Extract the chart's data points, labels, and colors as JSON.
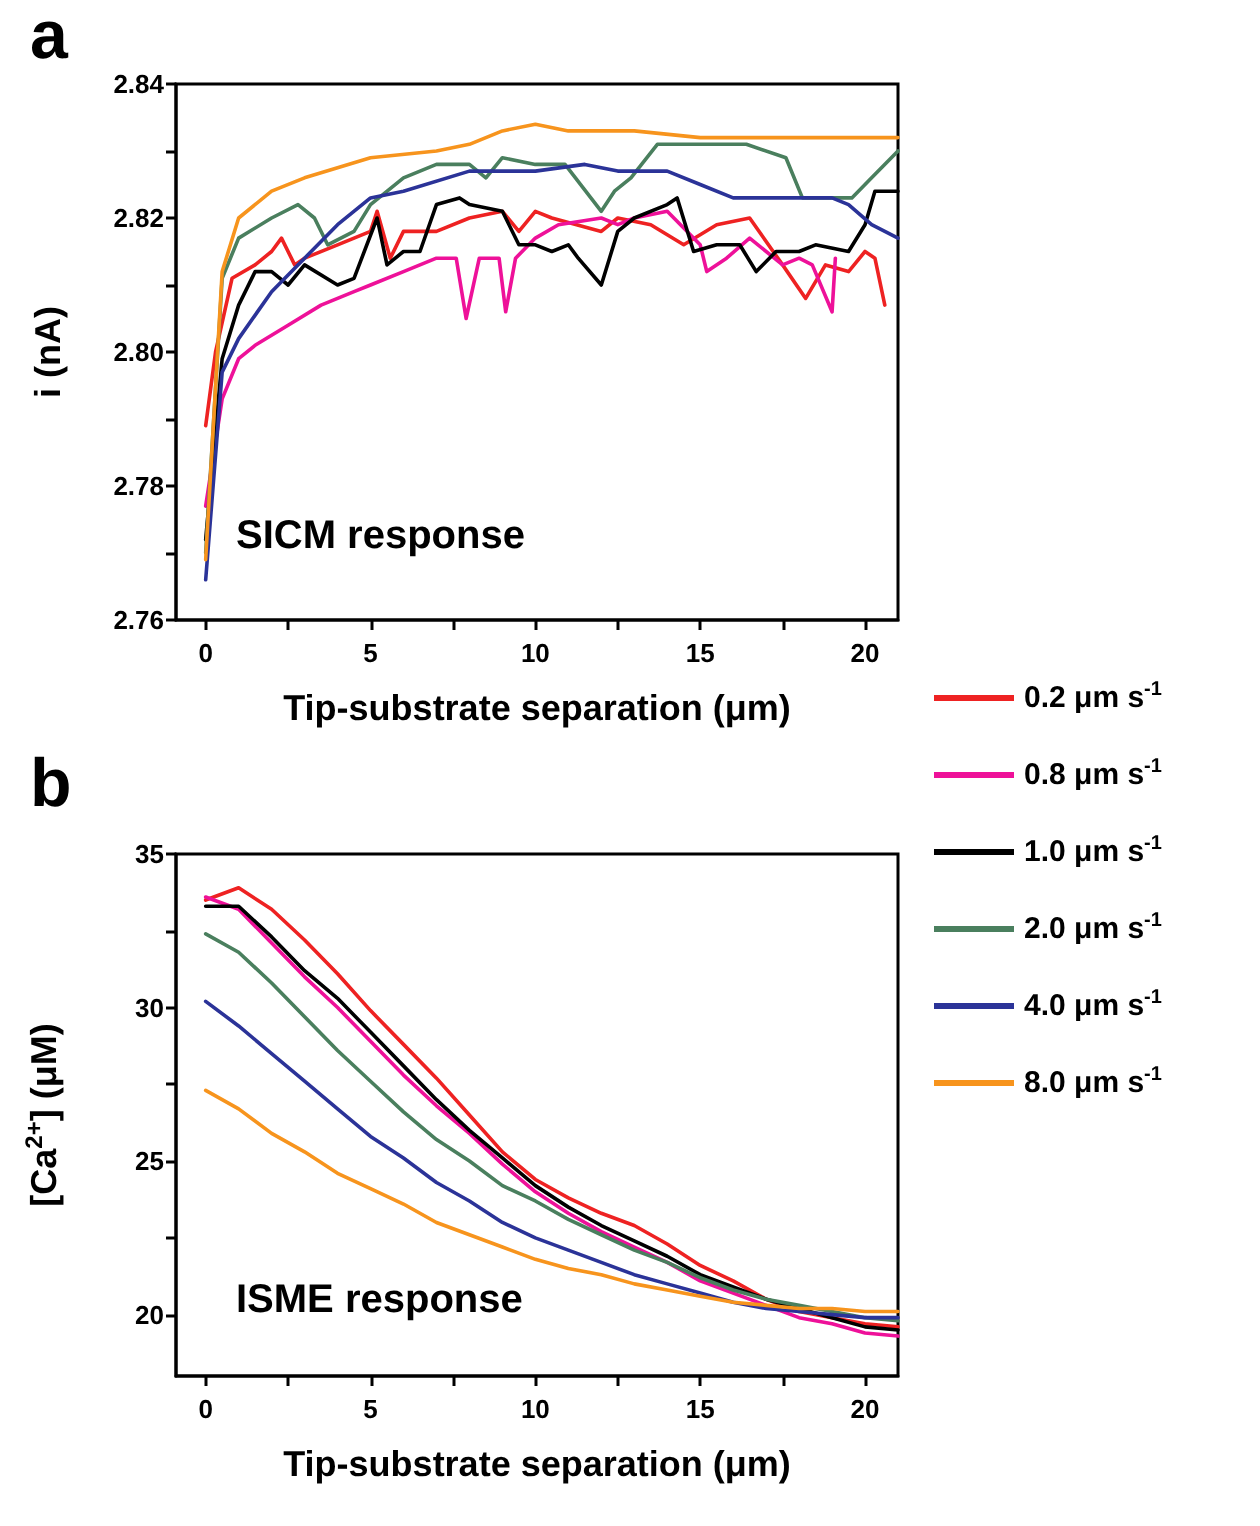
{
  "chart_data": [
    {
      "type": "line",
      "title": "a",
      "xlabel": "Tip-substrate separation (μm)",
      "ylabel": "i (nA)",
      "annotations": [
        "SICM response"
      ],
      "xlim": [
        -0.9,
        21
      ],
      "ylim": [
        2.76,
        2.84
      ],
      "xticks": [
        0,
        {
          "value": 2.5,
          "label": null
        },
        5,
        {
          "value": 7.5,
          "label": null
        },
        10,
        {
          "value": 12.5,
          "label": null
        },
        15,
        {
          "value": 17.5,
          "label": null
        },
        20
      ],
      "yticks": [
        2.76,
        {
          "value": 2.77,
          "label": null
        },
        2.78,
        {
          "value": 2.79,
          "label": null
        },
        {
          "value": 2.8,
          "label": "2.80"
        },
        {
          "value": 2.81,
          "label": null
        },
        2.82,
        {
          "value": 2.83,
          "label": null
        },
        2.84
      ],
      "grid": false,
      "legend": "right",
      "marker": "none",
      "line_style": "solid",
      "series": [
        {
          "name": "0.2 μm s$^{-1}$",
          "color": "#ee2222",
          "x": [
            0,
            0.3,
            0.8,
            1.5,
            2,
            2.3,
            2.7,
            3,
            4,
            5,
            5.2,
            5.6,
            6,
            7,
            8,
            9,
            9.5,
            10,
            10.5,
            12,
            12.5,
            13.5,
            14.5,
            15.5,
            16.5,
            17.5,
            18.2,
            18.8,
            19.5,
            20,
            20.3,
            20.6
          ],
          "values": [
            2.789,
            2.8,
            2.811,
            2.813,
            2.815,
            2.817,
            2.813,
            2.814,
            2.816,
            2.818,
            2.821,
            2.814,
            2.818,
            2.818,
            2.82,
            2.821,
            2.818,
            2.821,
            2.82,
            2.818,
            2.82,
            2.819,
            2.816,
            2.819,
            2.82,
            2.813,
            2.808,
            2.813,
            2.812,
            2.815,
            2.814,
            2.807
          ]
        },
        {
          "name": "0.8 μm s$^{-1}$",
          "color": "#ee1199",
          "x": [
            0,
            0.5,
            1,
            1.5,
            2.5,
            3.5,
            4.5,
            5,
            6,
            7,
            7.6,
            7.9,
            8.3,
            8.9,
            9.1,
            9.4,
            10,
            10.7,
            12,
            12.5,
            13,
            14,
            15,
            15.2,
            15.8,
            16.5,
            17.5,
            18,
            18.4,
            19,
            19.1
          ],
          "values": [
            2.777,
            2.793,
            2.799,
            2.801,
            2.804,
            2.807,
            2.809,
            2.81,
            2.812,
            2.814,
            2.814,
            2.805,
            2.814,
            2.814,
            2.806,
            2.814,
            2.817,
            2.819,
            2.82,
            2.819,
            2.82,
            2.821,
            2.816,
            2.812,
            2.814,
            2.817,
            2.813,
            2.814,
            2.813,
            2.806,
            2.814
          ]
        },
        {
          "name": "1.0 μm s$^{-1}$",
          "color": "#000000",
          "x": [
            0,
            0.5,
            1,
            1.5,
            2,
            2.5,
            3,
            4,
            4.5,
            5.2,
            5.5,
            6,
            6.5,
            7,
            7.7,
            8,
            9,
            9.5,
            10,
            10.5,
            11,
            11.3,
            12,
            12.5,
            13,
            14,
            14.3,
            14.8,
            15.5,
            16.2,
            16.7,
            17.3,
            18,
            18.5,
            19.5,
            20,
            20.3,
            21
          ],
          "values": [
            2.772,
            2.799,
            2.807,
            2.812,
            2.812,
            2.81,
            2.813,
            2.81,
            2.811,
            2.82,
            2.813,
            2.815,
            2.815,
            2.822,
            2.823,
            2.822,
            2.821,
            2.816,
            2.816,
            2.815,
            2.816,
            2.814,
            2.81,
            2.818,
            2.82,
            2.822,
            2.823,
            2.815,
            2.816,
            2.816,
            2.812,
            2.815,
            2.815,
            2.816,
            2.815,
            2.819,
            2.824,
            2.824
          ]
        },
        {
          "name": "2.0 μm s$^{-1}$",
          "color": "#4a7f5e",
          "x": [
            0,
            0.5,
            1,
            2,
            2.8,
            3.3,
            3.7,
            4.5,
            5,
            6,
            7,
            8,
            8.5,
            9,
            10,
            10.9,
            12,
            12.4,
            12.9,
            13.7,
            14.9,
            16.4,
            17.6,
            18.1,
            19,
            19.6,
            20.2,
            21
          ],
          "values": [
            2.77,
            2.811,
            2.817,
            2.82,
            2.822,
            2.82,
            2.816,
            2.818,
            2.822,
            2.826,
            2.828,
            2.828,
            2.826,
            2.829,
            2.828,
            2.828,
            2.821,
            2.824,
            2.826,
            2.831,
            2.831,
            2.831,
            2.829,
            2.823,
            2.823,
            2.823,
            2.826,
            2.83
          ]
        },
        {
          "name": "4.0 μm s$^{-1}$",
          "color": "#2b3398",
          "x": [
            0,
            0.5,
            1,
            2,
            3,
            4,
            5,
            6,
            8,
            10,
            11.5,
            12.5,
            14,
            15,
            16,
            18,
            19,
            19.5,
            20.2,
            21
          ],
          "values": [
            2.766,
            2.797,
            2.802,
            2.809,
            2.814,
            2.819,
            2.823,
            2.824,
            2.827,
            2.827,
            2.828,
            2.827,
            2.827,
            2.825,
            2.823,
            2.823,
            2.823,
            2.822,
            2.819,
            2.817
          ]
        },
        {
          "name": "8.0 μm s$^{-1}$",
          "color": "#f7941d",
          "x": [
            0,
            0.5,
            1,
            2,
            3,
            5,
            7,
            8,
            9,
            10,
            11,
            12,
            13,
            15,
            17,
            19,
            21
          ],
          "values": [
            2.769,
            2.812,
            2.82,
            2.824,
            2.826,
            2.829,
            2.83,
            2.831,
            2.833,
            2.834,
            2.833,
            2.833,
            2.833,
            2.832,
            2.832,
            2.832,
            2.832
          ]
        }
      ]
    },
    {
      "type": "line",
      "title": "b",
      "xlabel": "Tip-substrate separation (μm)",
      "ylabel": "[Ca$^{2+}$] (μM)",
      "annotations": [
        "ISME response"
      ],
      "xlim": [
        -0.9,
        21
      ],
      "ylim": [
        18,
        35
      ],
      "xticks": [
        0,
        {
          "value": 2.5,
          "label": null
        },
        5,
        {
          "value": 7.5,
          "label": null
        },
        10,
        {
          "value": 12.5,
          "label": null
        },
        15,
        {
          "value": 17.5,
          "label": null
        },
        20
      ],
      "yticks": [
        20,
        {
          "value": 22.5,
          "label": null
        },
        25,
        {
          "value": 27.5,
          "label": null
        },
        30,
        {
          "value": 32.5,
          "label": null
        },
        35
      ],
      "grid": false,
      "marker": "none",
      "line_style": "solid",
      "x": [
        0,
        1,
        2,
        3,
        4,
        5,
        6,
        7,
        8,
        9,
        10,
        11,
        12,
        13,
        14,
        15,
        16,
        17,
        18,
        19,
        20,
        21
      ],
      "series": [
        {
          "color": "#ee2222",
          "values": [
            33.5,
            33.9,
            33.2,
            32.2,
            31.1,
            29.9,
            28.8,
            27.7,
            26.5,
            25.3,
            24.4,
            23.8,
            23.3,
            22.9,
            22.3,
            21.6,
            21.1,
            20.5,
            20.1,
            19.9,
            19.7,
            19.6
          ]
        },
        {
          "color": "#ee1199",
          "values": [
            33.6,
            33.2,
            32.1,
            31.0,
            30.0,
            28.9,
            27.8,
            26.8,
            25.9,
            24.9,
            24.0,
            23.3,
            22.7,
            22.2,
            21.7,
            21.1,
            20.7,
            20.3,
            19.9,
            19.7,
            19.4,
            19.3
          ]
        },
        {
          "color": "#000000",
          "values": [
            33.3,
            33.3,
            32.3,
            31.2,
            30.3,
            29.2,
            28.1,
            27.0,
            26.0,
            25.1,
            24.2,
            23.5,
            22.9,
            22.4,
            21.9,
            21.3,
            20.9,
            20.5,
            20.2,
            19.9,
            19.6,
            19.5
          ]
        },
        {
          "color": "#4a7f5e",
          "values": [
            32.4,
            31.8,
            30.8,
            29.7,
            28.6,
            27.6,
            26.6,
            25.7,
            25.0,
            24.2,
            23.7,
            23.1,
            22.6,
            22.1,
            21.7,
            21.2,
            20.8,
            20.5,
            20.3,
            20.1,
            19.9,
            19.8
          ]
        },
        {
          "color": "#2b3398",
          "values": [
            30.2,
            29.4,
            28.5,
            27.6,
            26.7,
            25.8,
            25.1,
            24.3,
            23.7,
            23.0,
            22.5,
            22.1,
            21.7,
            21.3,
            21.0,
            20.7,
            20.4,
            20.2,
            20.1,
            20.0,
            19.9,
            19.9
          ]
        },
        {
          "color": "#f7941d",
          "values": [
            27.3,
            26.7,
            25.9,
            25.3,
            24.6,
            24.1,
            23.6,
            23.0,
            22.6,
            22.2,
            21.8,
            21.5,
            21.3,
            21.0,
            20.8,
            20.6,
            20.4,
            20.3,
            20.2,
            20.2,
            20.1,
            20.1
          ]
        }
      ]
    }
  ]
}
